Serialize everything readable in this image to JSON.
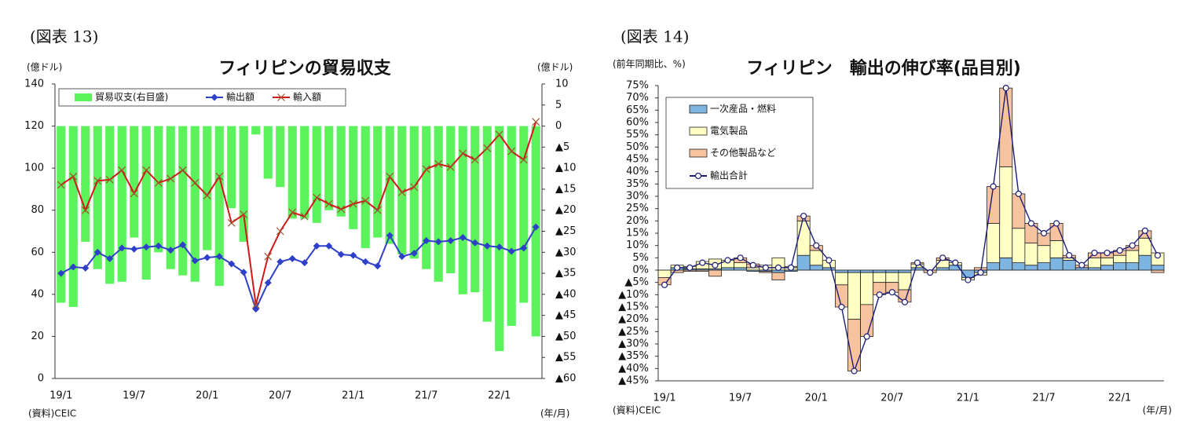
{
  "chart_data": [
    {
      "type": "bar_line",
      "figure_label": "(図表 13)",
      "title": "フィリピンの貿易収支",
      "y_unit_label": "(億ドル)",
      "y2_unit_label": "(億ドル)",
      "x_unit_label": "(年/月)",
      "source": "(資料)CEIC",
      "categories": [
        "19/1",
        null,
        null,
        null,
        null,
        null,
        "19/7",
        null,
        null,
        null,
        null,
        null,
        "20/1",
        null,
        null,
        null,
        null,
        null,
        "20/7",
        null,
        null,
        null,
        null,
        null,
        "21/1",
        null,
        null,
        null,
        null,
        null,
        "21/7",
        null,
        null,
        null,
        null,
        null,
        "22/1",
        null,
        null,
        null
      ],
      "ylim": [
        0,
        140
      ],
      "yticks": [
        0,
        20,
        40,
        60,
        80,
        100,
        120,
        140
      ],
      "y2lim": [
        -60,
        10
      ],
      "y2ticks": [
        10,
        5,
        0,
        {
          "value": -5,
          "label": "▲5"
        },
        {
          "value": -10,
          "label": "▲10"
        },
        {
          "value": -15,
          "label": "▲15"
        },
        {
          "value": -20,
          "label": "▲20"
        },
        {
          "value": -25,
          "label": "▲25"
        },
        {
          "value": -30,
          "label": "▲30"
        },
        {
          "value": -35,
          "label": "▲35"
        },
        {
          "value": -40,
          "label": "▲40"
        },
        {
          "value": -45,
          "label": "▲45"
        },
        {
          "value": -50,
          "label": "▲50"
        },
        {
          "value": -55,
          "label": "▲55"
        },
        {
          "value": -60,
          "label": "▲60"
        }
      ],
      "legend": "top-left",
      "series": [
        {
          "name": "貿易収支(右目盛)",
          "kind": "bar",
          "axis": "y2",
          "color": "#5cf25c",
          "values": [
            -42,
            -43,
            -27.5,
            -34,
            -37.5,
            -37,
            -26.5,
            -36.5,
            -30,
            -34,
            -35.5,
            -37,
            -29.5,
            -38,
            -19.5,
            -27.5,
            -2,
            -12.5,
            -14.5,
            -22,
            -22,
            -23,
            -20,
            -21.5,
            -24.5,
            -29,
            -26.5,
            -28,
            -30.5,
            -31.5,
            -34,
            -37,
            -35,
            -40,
            -39.5,
            -46.5,
            -53.5,
            -47.5,
            -42,
            -50
          ]
        },
        {
          "name": "輸出額",
          "kind": "line",
          "marker": "diamond",
          "color": "#2e3fc8",
          "values": [
            50,
            53,
            52.5,
            60,
            57,
            62,
            61.5,
            62.5,
            63,
            61,
            63.5,
            56,
            57.5,
            58,
            54.5,
            50.5,
            33,
            45.5,
            55.5,
            57,
            55,
            63,
            63,
            59,
            58.5,
            55.5,
            53.5,
            68,
            58,
            59.5,
            65.5,
            65,
            65.5,
            67,
            64.5,
            63,
            62.5,
            60.5,
            62,
            72
          ]
        },
        {
          "name": "輸入額",
          "kind": "line",
          "marker": "x",
          "color": "#d01818",
          "values": [
            92,
            96,
            80,
            94,
            94.5,
            99,
            88,
            99,
            93,
            95,
            99,
            93,
            87,
            96,
            74,
            78,
            35,
            58,
            70,
            79,
            77,
            86,
            83,
            80.5,
            83,
            84.5,
            80,
            96,
            88.5,
            91,
            99.5,
            102,
            100.5,
            107,
            104,
            109.5,
            116,
            108,
            104,
            122
          ]
        }
      ]
    },
    {
      "type": "stacked_bar_line",
      "figure_label": "(図表 14)",
      "title": "フィリピン　輸出の伸び率(品目別)",
      "y_unit_label": "(前年同期比、%)",
      "x_unit_label": "(年/月)",
      "source": "(資料)CEIC",
      "categories": [
        "19/1",
        null,
        null,
        null,
        null,
        null,
        "19/7",
        null,
        null,
        null,
        null,
        null,
        "20/1",
        null,
        null,
        null,
        null,
        null,
        "20/7",
        null,
        null,
        null,
        null,
        null,
        "21/1",
        null,
        null,
        null,
        null,
        null,
        "21/7",
        null,
        null,
        null,
        null,
        null,
        "22/1",
        null,
        null,
        null
      ],
      "ylim": [
        -45,
        75
      ],
      "yticks": [
        {
          "value": 75,
          "label": "75%"
        },
        {
          "value": 70,
          "label": "70%"
        },
        {
          "value": 65,
          "label": "65%"
        },
        {
          "value": 60,
          "label": "60%"
        },
        {
          "value": 55,
          "label": "55%"
        },
        {
          "value": 50,
          "label": "50%"
        },
        {
          "value": 45,
          "label": "45%"
        },
        {
          "value": 40,
          "label": "40%"
        },
        {
          "value": 35,
          "label": "35%"
        },
        {
          "value": 30,
          "label": "30%"
        },
        {
          "value": 25,
          "label": "25%"
        },
        {
          "value": 20,
          "label": "20%"
        },
        {
          "value": 15,
          "label": "15%"
        },
        {
          "value": 10,
          "label": "10%"
        },
        {
          "value": 5,
          "label": "5%"
        },
        {
          "value": 0,
          "label": "0%"
        },
        {
          "value": -5,
          "label": "▲5%"
        },
        {
          "value": -10,
          "label": "▲10%"
        },
        {
          "value": -15,
          "label": "▲15%"
        },
        {
          "value": -20,
          "label": "▲20%"
        },
        {
          "value": -25,
          "label": "▲25%"
        },
        {
          "value": -30,
          "label": "▲30%"
        },
        {
          "value": -35,
          "label": "▲35%"
        },
        {
          "value": -40,
          "label": "▲40%"
        },
        {
          "value": -45,
          "label": "▲45%"
        }
      ],
      "legend": "top-left",
      "series": [
        {
          "name": "一次産品・燃料",
          "kind": "bar",
          "color": "#7eb4e2",
          "values": [
            0,
            1,
            0.5,
            0.5,
            0.5,
            1,
            1,
            -0.5,
            -0.5,
            -1,
            -0.5,
            6,
            2,
            1,
            -1,
            -1,
            -1,
            -1,
            -1,
            -1,
            1,
            0,
            1,
            2,
            -3,
            -1,
            3,
            5,
            3,
            2,
            3,
            5,
            4,
            1,
            1,
            2,
            3,
            3,
            6,
            2
          ]
        },
        {
          "name": "電気製品",
          "kind": "bar",
          "color": "#ffffc4",
          "values": [
            -3,
            1,
            1,
            3,
            4,
            3,
            2,
            1,
            2,
            5,
            1,
            14,
            6,
            3,
            -5,
            -19,
            -13,
            -4,
            -4,
            -7,
            1.5,
            0,
            3,
            1,
            -1,
            -1,
            16,
            37,
            14,
            9,
            7,
            7,
            1,
            0,
            4,
            3,
            3,
            5,
            7,
            5
          ]
        },
        {
          "name": "その他製品など",
          "kind": "bar",
          "color": "#f7c29e",
          "values": [
            -3,
            -1,
            -0.5,
            -0.5,
            -2.5,
            0,
            2,
            1.5,
            -0.5,
            -3,
            0.5,
            2,
            2,
            0,
            -9,
            -21,
            -13,
            -5,
            -4,
            -5,
            0.5,
            -1,
            1,
            0,
            0,
            1,
            15,
            32,
            14,
            8,
            5,
            7,
            1,
            1,
            2,
            2,
            2,
            2,
            3,
            -1
          ]
        },
        {
          "name": "輸出合計",
          "kind": "line",
          "marker": "circle",
          "color": "#1c1c78",
          "values": [
            -6,
            1,
            1,
            3,
            2,
            4,
            5,
            2,
            1,
            1,
            1,
            22,
            10,
            4,
            -15,
            -41,
            -27,
            -10,
            -9,
            -13,
            3,
            -1,
            5,
            3,
            -4,
            -1,
            34,
            74,
            31,
            19,
            15,
            19,
            6,
            2,
            7,
            7,
            8,
            10,
            16,
            6
          ]
        }
      ]
    }
  ]
}
